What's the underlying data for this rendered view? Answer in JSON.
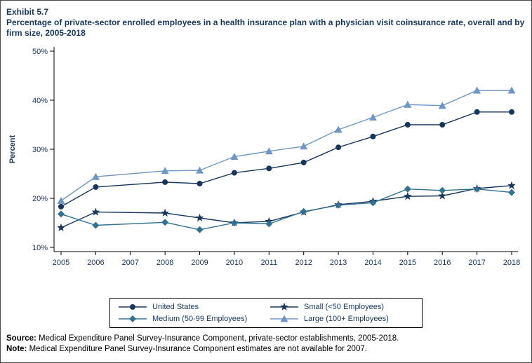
{
  "header": {
    "exhibit": "Exhibit 5.7",
    "title": "Percentage of private-sector enrolled employees in a health insurance plan with a physician visit coinsurance rate, overall and by firm size, 2005-2018"
  },
  "colors": {
    "axis_text": "#16365C",
    "title_text": "#16365C",
    "united_states": "#17365D",
    "small": "#17365D",
    "medium": "#31708F",
    "large": "#6E96C4"
  },
  "footer": {
    "source_label": "Source:",
    "source_text": " Medical Expenditure Panel Survey-Insurance Component, private-sector establishments, 2005-2018.",
    "note_label": "Note:",
    "note_text": " Medical Expenditure Panel Survey-Insurance Component estimates are not available for 2007."
  },
  "chart_data": {
    "type": "line",
    "title": "Percentage of private-sector enrolled employees in a health insurance plan with a physician visit coinsurance rate, overall and by firm size, 2005-2018",
    "xlabel": "",
    "ylabel": "Percent",
    "x": [
      2005,
      2006,
      2007,
      2008,
      2009,
      2010,
      2011,
      2012,
      2013,
      2014,
      2015,
      2016,
      2017,
      2018
    ],
    "ylim": [
      10,
      50
    ],
    "yticks": [
      10,
      20,
      30,
      40,
      50
    ],
    "ytick_suffix": "%",
    "grid": false,
    "legend_position": "bottom",
    "missing_data_note": "2007 estimates not available",
    "series": [
      {
        "name": "United States",
        "marker": "circle",
        "color": "#17365D",
        "values": [
          18.3,
          22.3,
          null,
          23.3,
          23.0,
          25.2,
          26.1,
          27.3,
          30.4,
          32.6,
          35.0,
          35.0,
          37.6,
          37.6
        ]
      },
      {
        "name": "Small (<50 Employees)",
        "marker": "star",
        "color": "#17365D",
        "values": [
          14.0,
          17.2,
          null,
          17.0,
          16.0,
          15.0,
          15.3,
          17.2,
          18.7,
          19.4,
          20.4,
          20.5,
          22.0,
          22.6
        ]
      },
      {
        "name": "Medium (50-99 Employees)",
        "marker": "diamond",
        "color": "#31708F",
        "values": [
          16.8,
          14.5,
          null,
          15.1,
          13.6,
          15.0,
          14.8,
          17.3,
          18.6,
          19.1,
          21.9,
          21.6,
          21.9,
          21.2
        ]
      },
      {
        "name": "Large (100+ Employees)",
        "marker": "triangle",
        "color": "#6E96C4",
        "values": [
          19.5,
          24.4,
          null,
          25.6,
          25.7,
          28.5,
          29.6,
          30.6,
          34.0,
          36.5,
          39.1,
          38.9,
          42.0,
          42.0
        ]
      }
    ]
  }
}
